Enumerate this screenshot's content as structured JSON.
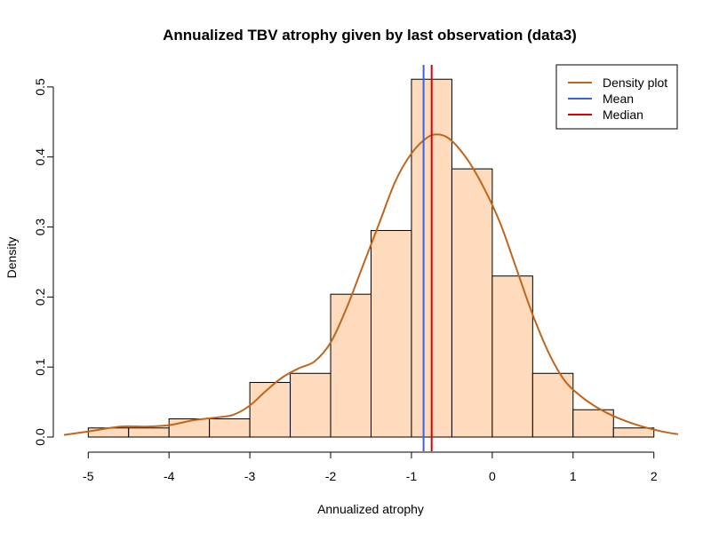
{
  "chart_data": {
    "type": "bar",
    "title": "Annualized TBV atrophy given by last observation (data3)",
    "xlabel": "Annualized atrophy",
    "ylabel": "Density",
    "xlim": [
      -5.3,
      2.3
    ],
    "ylim": [
      0,
      0.51
    ],
    "x_ticks": [
      -5,
      -4,
      -3,
      -2,
      -1,
      0,
      1,
      2
    ],
    "x_tick_labels": [
      "-5",
      "-4",
      "-3",
      "-2",
      "-1",
      "0",
      "1",
      "2"
    ],
    "y_ticks": [
      0.0,
      0.1,
      0.2,
      0.3,
      0.4,
      0.5
    ],
    "y_tick_labels": [
      "0.0",
      "0.1",
      "0.2",
      "0.3",
      "0.4",
      "0.5"
    ],
    "bins": [
      {
        "x0": -5.0,
        "x1": -4.5,
        "density": 0.013
      },
      {
        "x0": -4.5,
        "x1": -4.0,
        "density": 0.013
      },
      {
        "x0": -4.0,
        "x1": -3.5,
        "density": 0.026
      },
      {
        "x0": -3.5,
        "x1": -3.0,
        "density": 0.026
      },
      {
        "x0": -3.0,
        "x1": -2.5,
        "density": 0.078
      },
      {
        "x0": -2.5,
        "x1": -2.0,
        "density": 0.091
      },
      {
        "x0": -2.0,
        "x1": -1.5,
        "density": 0.204
      },
      {
        "x0": -1.5,
        "x1": -1.0,
        "density": 0.295
      },
      {
        "x0": -1.0,
        "x1": -0.5,
        "density": 0.511
      },
      {
        "x0": -0.5,
        "x1": 0.0,
        "density": 0.383
      },
      {
        "x0": 0.0,
        "x1": 0.5,
        "density": 0.23
      },
      {
        "x0": 0.5,
        "x1": 1.0,
        "density": 0.091
      },
      {
        "x0": 1.0,
        "x1": 1.5,
        "density": 0.039
      },
      {
        "x0": 1.5,
        "x1": 2.0,
        "density": 0.013
      }
    ],
    "density_curve": {
      "name": "Density plot",
      "x": [
        -5.3,
        -5.0,
        -4.6,
        -4.3,
        -4.0,
        -3.7,
        -3.4,
        -3.2,
        -3.0,
        -2.8,
        -2.6,
        -2.4,
        -2.2,
        -2.0,
        -1.8,
        -1.6,
        -1.4,
        -1.2,
        -1.0,
        -0.8,
        -0.65,
        -0.5,
        -0.3,
        -0.1,
        0.1,
        0.3,
        0.5,
        0.7,
        0.9,
        1.1,
        1.3,
        1.5,
        1.8,
        2.1,
        2.3
      ],
      "y": [
        0.003,
        0.008,
        0.015,
        0.015,
        0.017,
        0.024,
        0.028,
        0.032,
        0.045,
        0.066,
        0.085,
        0.098,
        0.108,
        0.135,
        0.185,
        0.245,
        0.305,
        0.365,
        0.405,
        0.428,
        0.432,
        0.423,
        0.395,
        0.355,
        0.305,
        0.24,
        0.175,
        0.12,
        0.08,
        0.058,
        0.042,
        0.03,
        0.017,
        0.008,
        0.004
      ]
    },
    "mean": {
      "name": "Mean",
      "value": -0.85
    },
    "median": {
      "name": "Median",
      "value": -0.75
    },
    "legend": {
      "position": "top-right",
      "entries": [
        {
          "label": "Density plot",
          "color": "#C0651C"
        },
        {
          "label": "Mean",
          "color": "#3B62D8"
        },
        {
          "label": "Median",
          "color": "#E00000"
        }
      ]
    },
    "colors": {
      "bar_fill": "#FDDBBC",
      "bar_stroke": "#000000",
      "density": "#C0651C",
      "mean": "#3B62D8",
      "median": "#E00000"
    }
  }
}
